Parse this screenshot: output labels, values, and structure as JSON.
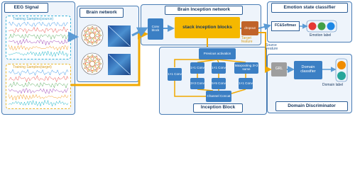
{
  "eeg": {
    "title": "EEG Signal",
    "source": "Training Samples(source)",
    "target": "Training Samples(target)"
  },
  "brain_network": {
    "title": "Brain network"
  },
  "inception_network": {
    "title": "Brain Inception network",
    "conv_block": "Conv block",
    "stack": "stack inception blocks",
    "dropout": "dropout",
    "target_feature": "Target feature",
    "source_feature": "Source Feature"
  },
  "inception_block": {
    "title": "Inception Block",
    "previous": "Previous activation",
    "convs": [
      "1×1 Conv",
      "1×1 Conv",
      "1×1 Conv",
      "3×3 Conv",
      "5×5 Conv",
      "1×1 Conv"
    ],
    "maxpool": "Maxpooling 3×3 same",
    "concat": "Channel Concat"
  },
  "emotion": {
    "title": "Emotion state classifier",
    "fc": "FC&Softmax",
    "label": "Emotion label"
  },
  "domain": {
    "title": "Domain Discriminator",
    "grl": "GRL",
    "classifier": "Domain classifier",
    "label": "Domain label"
  }
}
